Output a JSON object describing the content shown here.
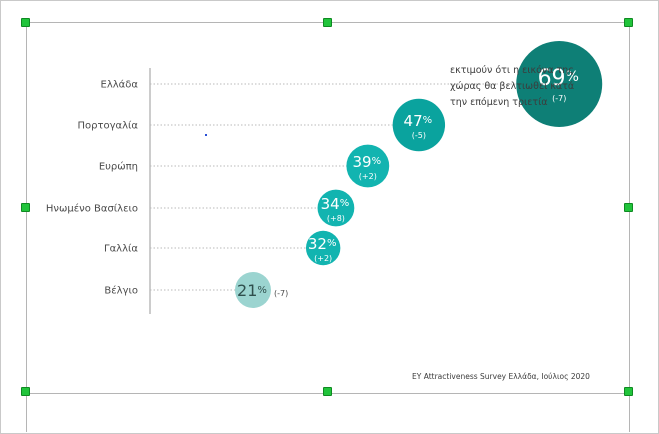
{
  "chart_data": {
    "type": "scatter",
    "categories": [
      "Ελλάδα",
      "Πορτογαλία",
      "Ευρώπη",
      "Ηνωμένο Βασίλειο",
      "Γαλλία",
      "Βέλγιο"
    ],
    "values": [
      69,
      47,
      39,
      34,
      32,
      21
    ],
    "changes": [
      "(-7)",
      "(-5)",
      "(+2)",
      "(+8)",
      "(+2)",
      "(-7)"
    ],
    "value_labels": [
      "69",
      "47",
      "39",
      "34",
      "32",
      "21"
    ],
    "unit": "%",
    "annotation": "εκτιμούν ότι η εικόνα της χώρας θα βελτιωθεί κατά την επόμενη τριετία",
    "source": "EY Attractiveness Survey Ελλάδα, Ιούλιος 2020",
    "colors": [
      "#0e7f76",
      "#0aa39e",
      "#12b4b0",
      "#12b4b0",
      "#12b4b0",
      "#9bd4d0"
    ]
  }
}
